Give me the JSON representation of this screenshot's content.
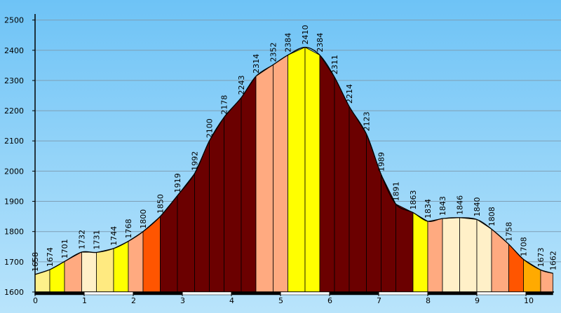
{
  "chart_data": {
    "type": "area",
    "title": "",
    "xlabel": "",
    "ylabel": "",
    "xlim": [
      0,
      10.55
    ],
    "ylim": [
      1600,
      2520
    ],
    "x_ticks": [
      "0",
      "1",
      "2",
      "3",
      "4",
      "5",
      "6",
      "7",
      "8",
      "9",
      "10"
    ],
    "y_ticks": [
      "1600",
      "1700",
      "1800",
      "1900",
      "2000",
      "2100",
      "2200",
      "2300",
      "2400",
      "2500"
    ],
    "grid": true,
    "points": [
      {
        "x": 0.0,
        "y": 1658,
        "label": "1658"
      },
      {
        "x": 0.3,
        "y": 1674,
        "label": "1674"
      },
      {
        "x": 0.6,
        "y": 1701,
        "label": "1701"
      },
      {
        "x": 0.95,
        "y": 1732,
        "label": "1732"
      },
      {
        "x": 1.25,
        "y": 1731,
        "label": "1731"
      },
      {
        "x": 1.6,
        "y": 1744,
        "label": "1744"
      },
      {
        "x": 1.9,
        "y": 1768,
        "label": "1768"
      },
      {
        "x": 2.2,
        "y": 1800,
        "label": "1800"
      },
      {
        "x": 2.55,
        "y": 1850,
        "label": "1850"
      },
      {
        "x": 2.9,
        "y": 1919,
        "label": "1919"
      },
      {
        "x": 3.25,
        "y": 1992,
        "label": "1992"
      },
      {
        "x": 3.55,
        "y": 2100,
        "label": "2100"
      },
      {
        "x": 3.85,
        "y": 2178,
        "label": "2178"
      },
      {
        "x": 4.2,
        "y": 2243,
        "label": "2243"
      },
      {
        "x": 4.5,
        "y": 2314,
        "label": "2314"
      },
      {
        "x": 4.85,
        "y": 2352,
        "label": "2352"
      },
      {
        "x": 5.15,
        "y": 2384,
        "label": "2384"
      },
      {
        "x": 5.5,
        "y": 2410,
        "label": "2410"
      },
      {
        "x": 5.8,
        "y": 2384,
        "label": "2384"
      },
      {
        "x": 6.1,
        "y": 2311,
        "label": "2311"
      },
      {
        "x": 6.4,
        "y": 2214,
        "label": "2214"
      },
      {
        "x": 6.75,
        "y": 2123,
        "label": "2123"
      },
      {
        "x": 7.05,
        "y": 1989,
        "label": "1989"
      },
      {
        "x": 7.35,
        "y": 1891,
        "label": "1891"
      },
      {
        "x": 7.7,
        "y": 1863,
        "label": "1863"
      },
      {
        "x": 8.0,
        "y": 1834,
        "label": "1834"
      },
      {
        "x": 8.3,
        "y": 1843,
        "label": "1843"
      },
      {
        "x": 8.65,
        "y": 1846,
        "label": "1846"
      },
      {
        "x": 9.0,
        "y": 1840,
        "label": "1840"
      },
      {
        "x": 9.3,
        "y": 1808,
        "label": "1808"
      },
      {
        "x": 9.65,
        "y": 1758,
        "label": "1758"
      },
      {
        "x": 9.95,
        "y": 1708,
        "label": "1708"
      },
      {
        "x": 10.3,
        "y": 1673,
        "label": "1673"
      },
      {
        "x": 10.55,
        "y": 1662,
        "label": "1662"
      }
    ],
    "segment_colors": [
      "#fdf08a",
      "#ffff00",
      "#ffaa80",
      "#fff0c8",
      "#ffea80",
      "#ffff00",
      "#ffaa80",
      "#ff5500",
      "#6b0000",
      "#6b0000",
      "#6b0000",
      "#6b0000",
      "#6b0000",
      "#6b0000",
      "#ffaa80",
      "#ffaa80",
      "#ffff00",
      "#ffff00",
      "#6b0000",
      "#6b0000",
      "#6b0000",
      "#6b0000",
      "#6b0000",
      "#6b0000",
      "#ffff00",
      "#ffaa80",
      "#fff0c8",
      "#fff0c8",
      "#fff0c8",
      "#ffaa80",
      "#ff5500",
      "#ffaa00",
      "#ffaa80"
    ],
    "colors": {
      "sky_top": "#6ec3f6",
      "sky_bottom": "#b9e4fb",
      "grid": "#7f9fb5",
      "outline": "#000000"
    }
  }
}
